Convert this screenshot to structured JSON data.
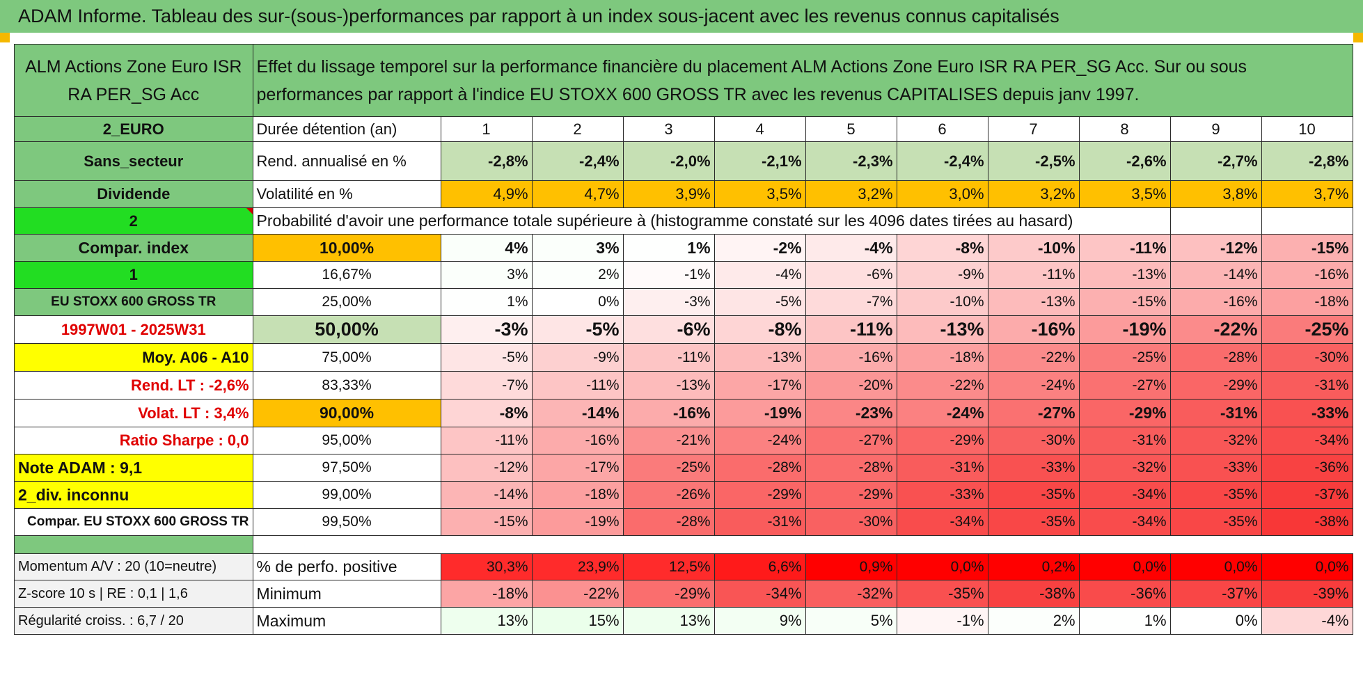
{
  "title": "ADAM Informe. Tableau des sur-(sous-)performances par rapport à un index sous-jacent avec les revenus connus capitalisés",
  "fund_name": "ALM Actions Zone Euro ISR RA PER_SG Acc",
  "description": "Effet du lissage temporel sur la performance financière du placement ALM Actions Zone Euro ISR RA PER_SG Acc. Sur ou sous performances par rapport à l'indice EU STOXX 600 GROSS TR avec les revenus CAPITALISES depuis janv 1997.",
  "left_labels": {
    "currency": "2_EURO",
    "sector": "Sans_secteur",
    "dividend": "Dividende",
    "flag_2": "2",
    "compar_index": "Compar. index",
    "flag_1": "1",
    "index_name": "EU STOXX 600 GROSS TR",
    "period": "1997W01 - 2025W31",
    "moy": "Moy. A06 - A10",
    "rend_lt": "Rend. LT :    -2,6%",
    "volat_lt": "Volat. LT :    3,4%",
    "sharpe": "Ratio Sharpe :    0,0",
    "note_adam": "Note ADAM : 9,1",
    "div_inconnu": "2_div. inconnu",
    "compar_name": "Compar. EU STOXX 600 GROSS TR",
    "momentum": "Momentum A/V : 20 (10=neutre)",
    "zscore": "Z-score 10 s | RE : 0,1 | 1,6",
    "regularite": "Régularité croiss. : 6,7 / 20"
  },
  "header": {
    "duration_label": "Durée détention (an)",
    "years": [
      "1",
      "2",
      "3",
      "4",
      "5",
      "6",
      "7",
      "8",
      "9",
      "10"
    ],
    "rend_label": "Rend. annualisé en %",
    "rend": [
      "-2,8%",
      "-2,4%",
      "-2,0%",
      "-2,1%",
      "-2,3%",
      "-2,4%",
      "-2,5%",
      "-2,6%",
      "-2,7%",
      "-2,8%"
    ],
    "vol_label": "Volatilité en %",
    "vol": [
      "4,9%",
      "4,7%",
      "3,9%",
      "3,5%",
      "3,2%",
      "3,0%",
      "3,2%",
      "3,5%",
      "3,8%",
      "3,7%"
    ],
    "prob_label": "Probabilité d'avoir une performance totale supérieure à (histogramme constaté sur les 4096 dates tirées au hasard)"
  },
  "quantiles": [
    {
      "p": "10,00%",
      "values": [
        "4%",
        "3%",
        "1%",
        "-2%",
        "-4%",
        "-8%",
        "-10%",
        "-11%",
        "-12%",
        "-15%"
      ]
    },
    {
      "p": "16,67%",
      "values": [
        "3%",
        "2%",
        "-1%",
        "-4%",
        "-6%",
        "-9%",
        "-11%",
        "-13%",
        "-14%",
        "-16%"
      ]
    },
    {
      "p": "25,00%",
      "values": [
        "1%",
        "0%",
        "-3%",
        "-5%",
        "-7%",
        "-10%",
        "-13%",
        "-15%",
        "-16%",
        "-18%"
      ]
    },
    {
      "p": "50,00%",
      "values": [
        "-3%",
        "-5%",
        "-6%",
        "-8%",
        "-11%",
        "-13%",
        "-16%",
        "-19%",
        "-22%",
        "-25%"
      ]
    },
    {
      "p": "75,00%",
      "values": [
        "-5%",
        "-9%",
        "-11%",
        "-13%",
        "-16%",
        "-18%",
        "-22%",
        "-25%",
        "-28%",
        "-30%"
      ]
    },
    {
      "p": "83,33%",
      "values": [
        "-7%",
        "-11%",
        "-13%",
        "-17%",
        "-20%",
        "-22%",
        "-24%",
        "-27%",
        "-29%",
        "-31%"
      ]
    },
    {
      "p": "90,00%",
      "values": [
        "-8%",
        "-14%",
        "-16%",
        "-19%",
        "-23%",
        "-24%",
        "-27%",
        "-29%",
        "-31%",
        "-33%"
      ]
    },
    {
      "p": "95,00%",
      "values": [
        "-11%",
        "-16%",
        "-21%",
        "-24%",
        "-27%",
        "-29%",
        "-30%",
        "-31%",
        "-32%",
        "-34%"
      ]
    },
    {
      "p": "97,50%",
      "values": [
        "-12%",
        "-17%",
        "-25%",
        "-28%",
        "-28%",
        "-31%",
        "-33%",
        "-32%",
        "-33%",
        "-36%"
      ]
    },
    {
      "p": "99,00%",
      "values": [
        "-14%",
        "-18%",
        "-26%",
        "-29%",
        "-29%",
        "-33%",
        "-35%",
        "-34%",
        "-35%",
        "-37%"
      ]
    },
    {
      "p": "99,50%",
      "values": [
        "-15%",
        "-19%",
        "-28%",
        "-31%",
        "-30%",
        "-34%",
        "-35%",
        "-34%",
        "-35%",
        "-38%"
      ]
    }
  ],
  "stats": {
    "pos_label": "% de perfo. positive",
    "pos": [
      "30,3%",
      "23,9%",
      "12,5%",
      "6,6%",
      "0,9%",
      "0,0%",
      "0,2%",
      "0,0%",
      "0,0%",
      "0,0%"
    ],
    "min_label": "Minimum",
    "min": [
      "-18%",
      "-22%",
      "-29%",
      "-34%",
      "-32%",
      "-35%",
      "-38%",
      "-36%",
      "-37%",
      "-39%"
    ],
    "max_label": "Maximum",
    "max": [
      "13%",
      "15%",
      "13%",
      "9%",
      "5%",
      "-1%",
      "2%",
      "1%",
      "0%",
      "-4%"
    ]
  },
  "colors": {
    "green_header": "#7ec87e",
    "light_green": "#c6e0b4",
    "bright_green": "#22dd22",
    "orange": "#ffc000",
    "yellow": "#ffff00",
    "red_text": "#e00000"
  }
}
